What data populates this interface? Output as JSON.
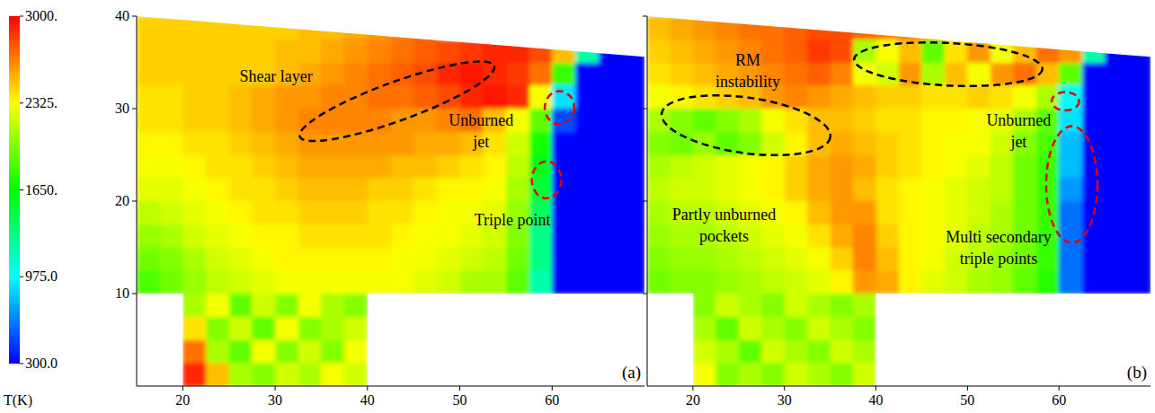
{
  "chart_data": [
    {
      "type": "heatmap",
      "label": "(a)",
      "xlim": [
        15,
        70
      ],
      "ylim": [
        0,
        40
      ],
      "xticks": [
        20,
        30,
        40,
        50,
        60
      ],
      "yticks": [
        10,
        20,
        30,
        40
      ],
      "domain": [
        [
          15,
          40
        ],
        [
          70,
          35.6
        ],
        [
          70,
          10
        ],
        [
          40,
          10
        ],
        [
          40,
          0
        ],
        [
          20,
          0
        ],
        [
          20,
          10
        ],
        [
          15,
          10
        ]
      ],
      "x_bins": [
        15,
        17.5,
        20,
        22.5,
        25,
        27.5,
        30,
        32.5,
        35,
        37.5,
        40,
        42.5,
        45,
        47.5,
        50,
        52.5,
        55,
        57.5,
        60,
        62.5,
        65,
        67.5,
        70
      ],
      "y_bins": [
        40,
        37.5,
        35,
        32.5,
        30,
        27.5,
        25,
        22.5,
        20,
        17.5,
        15,
        12.5,
        10,
        7.5,
        5,
        2.5,
        0
      ],
      "cells": [
        [
          2450,
          2450,
          2450,
          2450,
          2450,
          2450,
          2450,
          2500,
          2500,
          2550,
          2600,
          2650,
          2700,
          null,
          null,
          null,
          null,
          null,
          null,
          null,
          null,
          null
        ],
        [
          2450,
          2450,
          2450,
          2450,
          2450,
          2450,
          2500,
          2500,
          2550,
          2600,
          2650,
          2700,
          2750,
          2800,
          2850,
          2900,
          2900,
          2800,
          2500,
          1200,
          300,
          300
        ],
        [
          2450,
          2450,
          2450,
          2450,
          2450,
          2450,
          2500,
          2550,
          2600,
          2650,
          2700,
          2750,
          2800,
          2900,
          2950,
          2900,
          2850,
          2700,
          1800,
          300,
          300,
          300
        ],
        [
          2400,
          2400,
          2450,
          2450,
          2500,
          2550,
          2600,
          2600,
          2650,
          2650,
          2700,
          2700,
          2750,
          2800,
          2900,
          2950,
          2900,
          2300,
          900,
          300,
          300,
          300
        ],
        [
          2400,
          2400,
          2450,
          2450,
          2500,
          2550,
          2600,
          2650,
          2650,
          2650,
          2650,
          2600,
          2600,
          2650,
          2700,
          2500,
          2300,
          1900,
          500,
          300,
          300,
          300
        ],
        [
          2350,
          2350,
          2400,
          2400,
          2450,
          2500,
          2550,
          2600,
          2600,
          2600,
          2600,
          2600,
          2550,
          2550,
          2500,
          2400,
          2200,
          1700,
          300,
          300,
          300,
          300
        ],
        [
          2300,
          2300,
          2350,
          2400,
          2400,
          2450,
          2500,
          2550,
          2550,
          2550,
          2550,
          2500,
          2500,
          2450,
          2400,
          2350,
          2150,
          1600,
          300,
          300,
          300,
          300
        ],
        [
          2250,
          2250,
          2300,
          2350,
          2400,
          2400,
          2450,
          2500,
          2500,
          2500,
          2450,
          2450,
          2400,
          2350,
          2350,
          2300,
          2100,
          1500,
          300,
          300,
          300,
          300
        ],
        [
          2150,
          2200,
          2250,
          2300,
          2350,
          2400,
          2400,
          2450,
          2450,
          2450,
          2400,
          2400,
          2350,
          2300,
          2300,
          2250,
          2050,
          1400,
          300,
          300,
          300,
          300
        ],
        [
          2050,
          2100,
          2200,
          2250,
          2300,
          2350,
          2350,
          2400,
          2400,
          2400,
          2400,
          2350,
          2300,
          2300,
          2250,
          2200,
          2000,
          1300,
          300,
          300,
          300,
          300
        ],
        [
          1950,
          2000,
          2100,
          2200,
          2250,
          2300,
          2350,
          2350,
          2350,
          2350,
          2350,
          2300,
          2300,
          2250,
          2200,
          2150,
          1950,
          1300,
          300,
          300,
          300,
          300
        ],
        [
          1850,
          1950,
          2050,
          2150,
          2200,
          2250,
          2300,
          2300,
          2300,
          2300,
          2300,
          2300,
          2250,
          2200,
          2100,
          2100,
          1900,
          1200,
          300,
          300,
          300,
          300
        ],
        [
          null,
          null,
          2100,
          2300,
          1900,
          2200,
          2000,
          2300,
          2100,
          2000,
          null,
          null,
          null,
          null,
          null,
          null,
          null,
          null,
          null,
          null,
          null,
          null
        ],
        [
          null,
          null,
          2400,
          2000,
          2200,
          1900,
          2300,
          2000,
          2100,
          2200,
          null,
          null,
          null,
          null,
          null,
          null,
          null,
          null,
          null,
          null,
          null,
          null
        ],
        [
          null,
          null,
          2700,
          2100,
          1900,
          2300,
          2000,
          2200,
          2000,
          2300,
          null,
          null,
          null,
          null,
          null,
          null,
          null,
          null,
          null,
          null,
          null,
          null
        ],
        [
          null,
          null,
          2900,
          2500,
          2100,
          2000,
          2200,
          2100,
          2300,
          2200,
          null,
          null,
          null,
          null,
          null,
          null,
          null,
          null,
          null,
          null,
          null,
          null
        ]
      ],
      "annotations": [
        "Shear layer",
        "Unburned jet",
        "Triple point"
      ]
    },
    {
      "type": "heatmap",
      "label": "(b)",
      "tick_labels": "x",
      "xlim": [
        15,
        70
      ],
      "ylim": [
        0,
        40
      ],
      "xticks": [
        20,
        30,
        40,
        50,
        60
      ],
      "yticks": [
        10,
        20,
        30,
        40
      ],
      "domain": [
        [
          15,
          40
        ],
        [
          70,
          35.6
        ],
        [
          70,
          10
        ],
        [
          40,
          10
        ],
        [
          40,
          0
        ],
        [
          20,
          0
        ],
        [
          20,
          10
        ],
        [
          15,
          10
        ]
      ],
      "x_bins": [
        15,
        17.5,
        20,
        22.5,
        25,
        27.5,
        30,
        32.5,
        35,
        37.5,
        40,
        42.5,
        45,
        47.5,
        50,
        52.5,
        55,
        57.5,
        60,
        62.5,
        65,
        67.5,
        70
      ],
      "y_bins": [
        40,
        37.5,
        35,
        32.5,
        30,
        27.5,
        25,
        22.5,
        20,
        17.5,
        15,
        12.5,
        10,
        7.5,
        5,
        2.5,
        0
      ],
      "cells": [
        [
          2500,
          2550,
          2600,
          2650,
          2700,
          2700,
          2750,
          2800,
          2800,
          2750,
          2700,
          2700,
          2750,
          null,
          null,
          null,
          null,
          null,
          null,
          null,
          null,
          null
        ],
        [
          2450,
          2500,
          2550,
          2600,
          2650,
          2700,
          2750,
          2850,
          2800,
          2100,
          2300,
          2500,
          1900,
          2400,
          2600,
          2300,
          2500,
          2700,
          2600,
          1200,
          300,
          300
        ],
        [
          2400,
          2450,
          2500,
          2550,
          2600,
          2650,
          2700,
          2750,
          2650,
          2300,
          2200,
          2600,
          2100,
          2500,
          2300,
          2600,
          2700,
          2500,
          1900,
          300,
          300,
          300
        ],
        [
          2300,
          2350,
          2400,
          2450,
          2500,
          2600,
          2650,
          2600,
          2550,
          2500,
          2450,
          2450,
          2400,
          2400,
          2450,
          2400,
          2300,
          2100,
          1000,
          300,
          300,
          300
        ],
        [
          2100,
          2000,
          1900,
          2000,
          2100,
          2300,
          2400,
          2500,
          2500,
          2450,
          2400,
          2400,
          2350,
          2350,
          2300,
          2250,
          2100,
          1900,
          900,
          300,
          300,
          300
        ],
        [
          2000,
          1950,
          2050,
          1900,
          2000,
          2200,
          2350,
          2500,
          2550,
          2500,
          2450,
          2400,
          2350,
          2300,
          2300,
          2200,
          2000,
          1850,
          800,
          300,
          300,
          300
        ],
        [
          2100,
          2150,
          2200,
          2250,
          2300,
          2350,
          2450,
          2550,
          2600,
          2550,
          2450,
          2400,
          2350,
          2300,
          2250,
          2150,
          1950,
          1800,
          800,
          300,
          300,
          300
        ],
        [
          2150,
          2200,
          2200,
          2250,
          2300,
          2350,
          2450,
          2550,
          2600,
          2500,
          2400,
          2350,
          2300,
          2250,
          2200,
          2150,
          1950,
          1800,
          700,
          300,
          300,
          300
        ],
        [
          2100,
          2150,
          2150,
          2200,
          2250,
          2300,
          2350,
          2500,
          2600,
          2600,
          2400,
          2350,
          2300,
          2250,
          2200,
          2100,
          1950,
          1800,
          600,
          300,
          300,
          300
        ],
        [
          2050,
          2100,
          2100,
          2150,
          2200,
          2250,
          2300,
          2400,
          2550,
          2650,
          2450,
          2350,
          2300,
          2250,
          2150,
          2100,
          1950,
          1800,
          600,
          300,
          300,
          300
        ],
        [
          2000,
          2050,
          2050,
          2100,
          2150,
          2200,
          2250,
          2300,
          2450,
          2650,
          2500,
          2350,
          2300,
          2200,
          2150,
          2050,
          1950,
          1800,
          600,
          300,
          300,
          300
        ],
        [
          1950,
          2000,
          2000,
          2050,
          2100,
          2150,
          2200,
          2250,
          2350,
          2600,
          2550,
          2350,
          2250,
          2200,
          2100,
          2050,
          1900,
          1750,
          600,
          300,
          300,
          300
        ],
        [
          null,
          null,
          2000,
          2200,
          2100,
          2000,
          2200,
          2100,
          2000,
          2100,
          null,
          null,
          null,
          null,
          null,
          null,
          null,
          null,
          null,
          null,
          null,
          null
        ],
        [
          null,
          null,
          2100,
          1900,
          2200,
          2100,
          2000,
          2200,
          2100,
          2000,
          null,
          null,
          null,
          null,
          null,
          null,
          null,
          null,
          null,
          null,
          null,
          null
        ],
        [
          null,
          null,
          2200,
          2100,
          1900,
          2200,
          2100,
          2000,
          2200,
          2100,
          null,
          null,
          null,
          null,
          null,
          null,
          null,
          null,
          null,
          null,
          null,
          null
        ],
        [
          null,
          null,
          2300,
          2000,
          2100,
          2000,
          2200,
          2100,
          2000,
          2200,
          null,
          null,
          null,
          null,
          null,
          null,
          null,
          null,
          null,
          null,
          null,
          null
        ]
      ],
      "annotations": [
        "RM instability",
        "Partly unburned pockets",
        "Unburned jet",
        "Multi secondary triple points"
      ]
    }
  ],
  "colorbar": {
    "label": "T(K)",
    "range": [
      300,
      3000
    ],
    "colors": [
      "#0000ff",
      "#00ffff",
      "#00ff00",
      "#ffff00",
      "#ff0000"
    ],
    "ticks": [
      {
        "value": 3000,
        "label": "3000."
      },
      {
        "value": 2325,
        "label": "2325."
      },
      {
        "value": 1650,
        "label": "1650."
      },
      {
        "value": 975,
        "label": "975.0"
      },
      {
        "value": 300,
        "label": "300.0"
      }
    ]
  }
}
